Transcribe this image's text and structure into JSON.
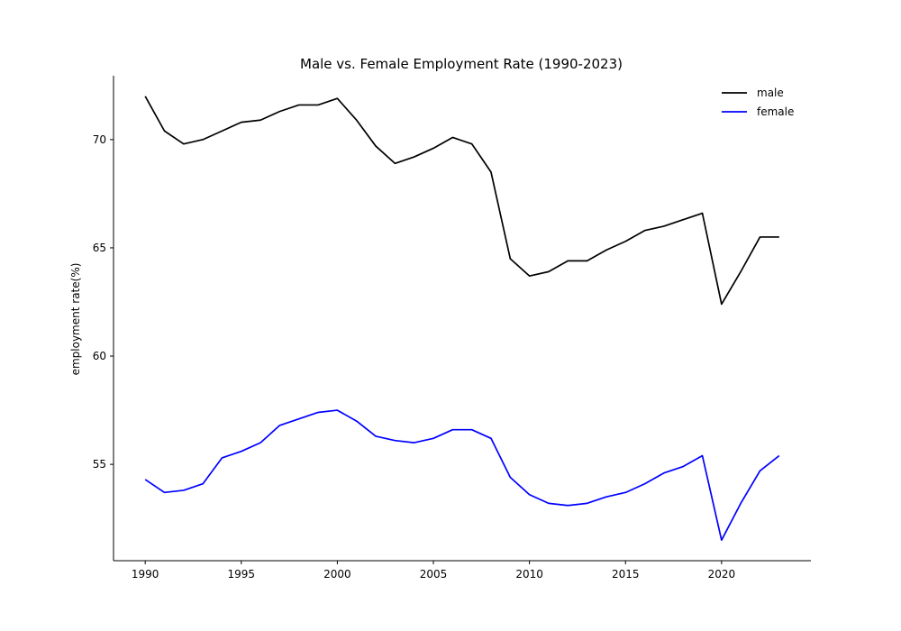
{
  "chart_data": {
    "type": "line",
    "title": "Male vs. Female Employment Rate (1990-2023)",
    "xlabel": "",
    "ylabel": "employment rate(%)",
    "x": [
      1990,
      1991,
      1992,
      1993,
      1994,
      1995,
      1996,
      1997,
      1998,
      1999,
      2000,
      2001,
      2002,
      2003,
      2004,
      2005,
      2006,
      2007,
      2008,
      2009,
      2010,
      2011,
      2012,
      2013,
      2014,
      2015,
      2016,
      2017,
      2018,
      2019,
      2020,
      2021,
      2022,
      2023
    ],
    "xlim": [
      1988.35,
      2024.65
    ],
    "ylim": [
      50.55,
      72.95
    ],
    "xticks": [
      1990,
      1995,
      2000,
      2005,
      2010,
      2015,
      2020
    ],
    "yticks": [
      55,
      60,
      65,
      70
    ],
    "grid": false,
    "legend_position": "top-right",
    "series": [
      {
        "name": "male",
        "color": "#000000",
        "values": [
          72.0,
          70.4,
          69.8,
          70.0,
          70.4,
          70.8,
          70.9,
          71.3,
          71.6,
          71.6,
          71.9,
          70.9,
          69.7,
          68.9,
          69.2,
          69.6,
          70.1,
          69.8,
          68.5,
          64.5,
          63.7,
          63.9,
          64.4,
          64.4,
          64.9,
          65.3,
          65.8,
          66.0,
          66.3,
          66.6,
          62.4,
          63.9,
          65.5,
          65.5
        ]
      },
      {
        "name": "female",
        "color": "#0000ff",
        "values": [
          54.3,
          53.7,
          53.8,
          54.1,
          55.3,
          55.6,
          56.0,
          56.8,
          57.1,
          57.4,
          57.5,
          57.0,
          56.3,
          56.1,
          56.0,
          56.2,
          56.6,
          56.6,
          56.2,
          54.4,
          53.6,
          53.2,
          53.1,
          53.2,
          53.5,
          53.7,
          54.1,
          54.6,
          54.9,
          55.4,
          51.5,
          53.2,
          54.7,
          55.4
        ]
      }
    ]
  }
}
